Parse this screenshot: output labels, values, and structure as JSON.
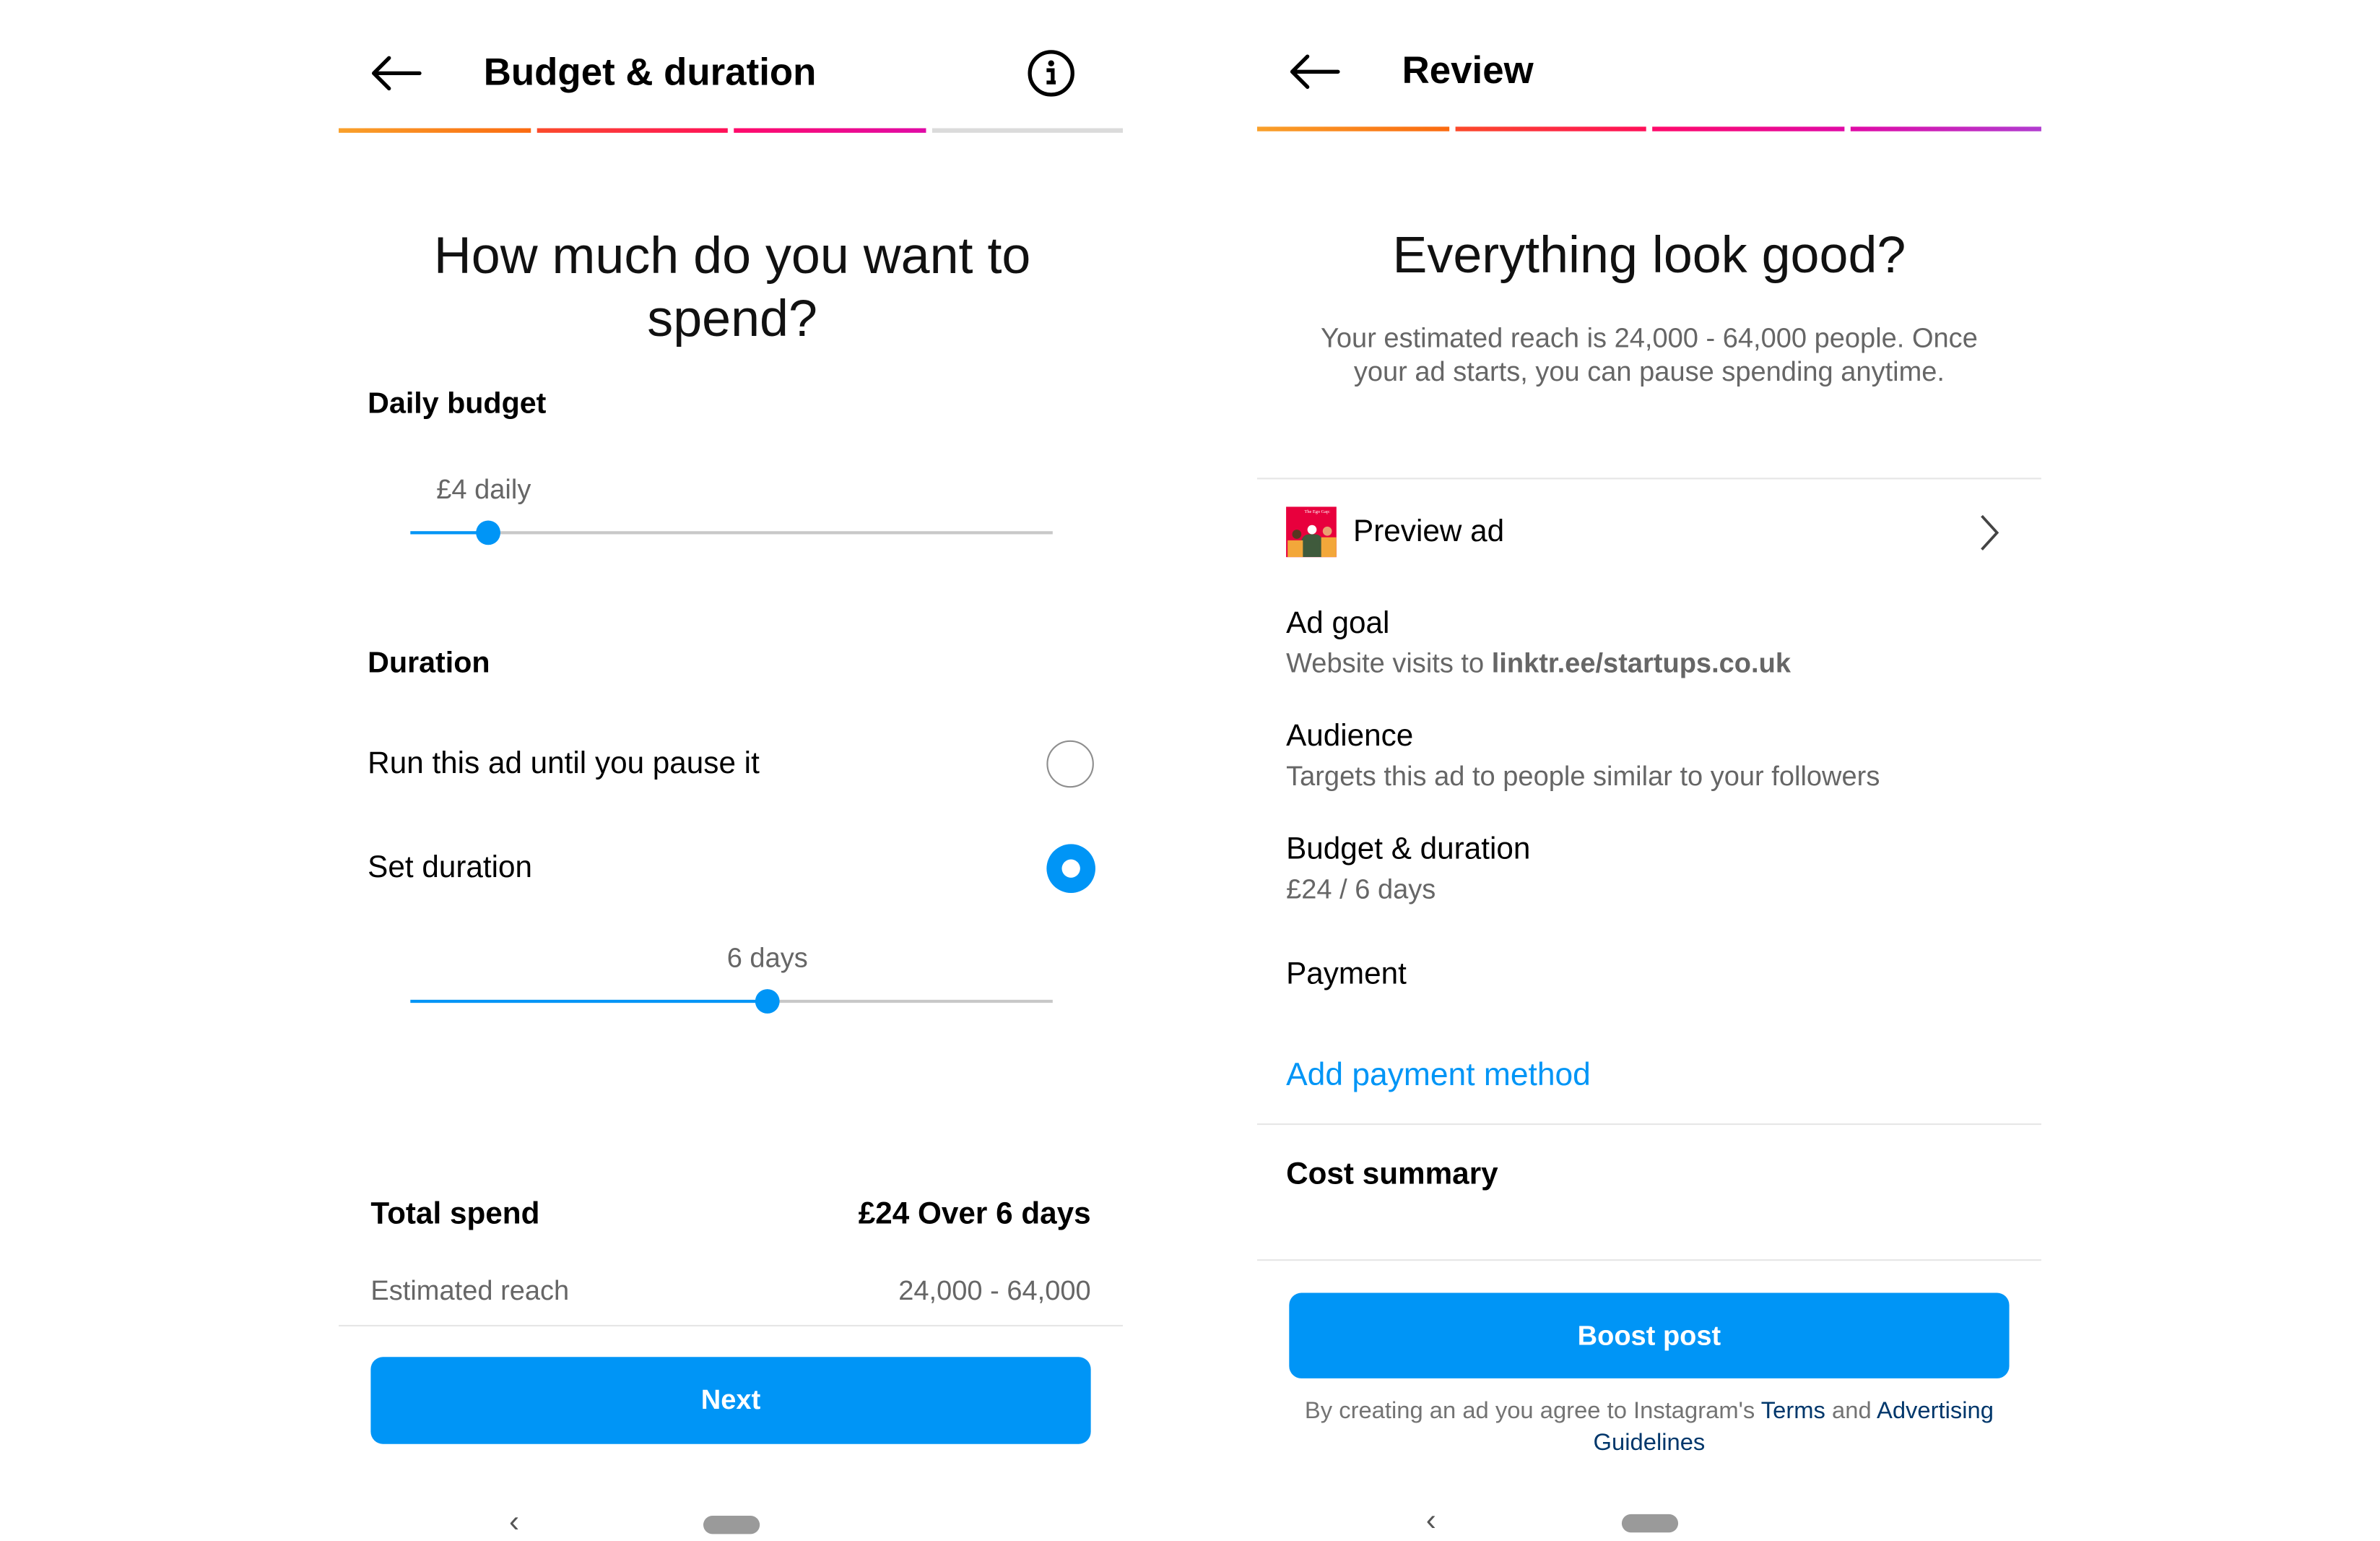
{
  "left": {
    "header": {
      "title": "Budget & duration"
    },
    "question": "How much do you want to spend?",
    "daily_budget": {
      "label": "Daily budget",
      "value": "£4 daily",
      "slider_fraction": 0.12
    },
    "duration": {
      "label": "Duration",
      "options": [
        {
          "label": "Run this ad until you pause it",
          "selected": false
        },
        {
          "label": "Set duration",
          "selected": true
        }
      ],
      "value": "6 days",
      "slider_fraction": 0.555
    },
    "total_spend": {
      "label": "Total spend",
      "value": "£24 Over 6 days"
    },
    "estimated_reach": {
      "label": "Estimated reach",
      "value": "24,000 - 64,000"
    },
    "next_label": "Next"
  },
  "right": {
    "header": {
      "title": "Review"
    },
    "heading": "Everything look good?",
    "subtitle_1": "Your estimated reach is 24,000 - 64,000 people. Once",
    "subtitle_2": "your ad starts, you can pause spending anytime.",
    "preview_label": "Preview ad",
    "preview_thumb_text": "The Ego Gap:",
    "ad_goal": {
      "label": "Ad goal",
      "prefix": "Website visits to ",
      "link": "linktr.ee/startups.co.uk"
    },
    "audience": {
      "label": "Audience",
      "value": "Targets this ad to people similar to your followers"
    },
    "budget": {
      "label": "Budget & duration",
      "value": "£24 / 6 days"
    },
    "payment": {
      "label": "Payment",
      "action": "Add payment method"
    },
    "cost_summary": "Cost summary",
    "boost_label": "Boost post",
    "legal": {
      "prefix": "By creating an ad you agree to Instagram's ",
      "terms": "Terms",
      "and": " and ",
      "advertising": "Advertising",
      "guidelines": "Guidelines"
    }
  },
  "nav": {
    "back": "‹"
  },
  "colors": {
    "accent": "#0095f6",
    "progress": [
      "#f77f1a",
      "#f5333f",
      "#ee0a7b",
      "#c535c4"
    ],
    "progress_inactive": "#dbdbdb"
  }
}
